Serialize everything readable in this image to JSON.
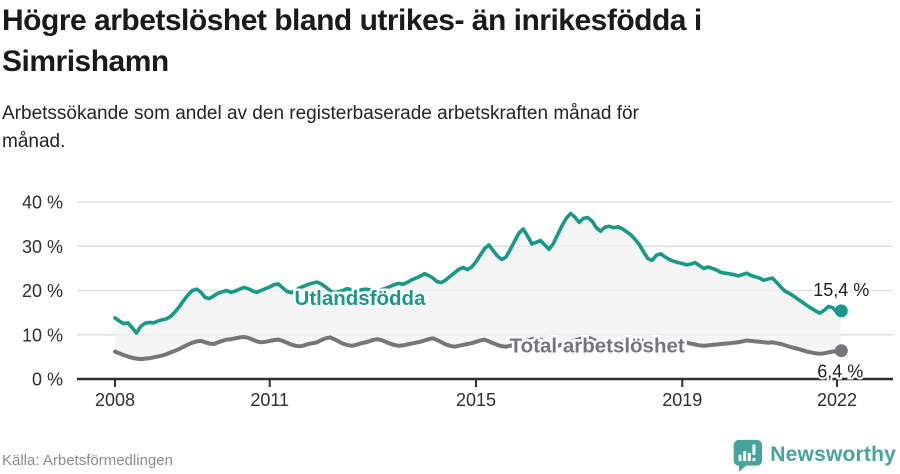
{
  "header": {
    "title": "Högre arbetslöshet bland utrikes- än inrikesfödda i Simrishamn",
    "subtitle": "Arbetssökande som andel av den registerbaserade arbetskraften månad för månad."
  },
  "footer": {
    "source": "Källa: Arbetsförmedlingen",
    "brand": "Newsworthy",
    "brand_color": "#46a49d",
    "brand_icon": "bar-chart-speech-bubble-icon"
  },
  "chart_data": {
    "type": "line",
    "frequency": "monthly",
    "x_start_year": 2008,
    "x_end": "2022-02",
    "x_ticks": [
      2008,
      2011,
      2015,
      2019,
      2022
    ],
    "x_tick_labels": [
      "2008",
      "2011",
      "2015",
      "2019",
      "2022"
    ],
    "y_ticks": [
      0,
      10,
      20,
      30,
      40
    ],
    "y_tick_labels": [
      "0 %",
      "10 %",
      "20 %",
      "30 %",
      "40 %"
    ],
    "y_unit": "%",
    "ylim": [
      0,
      43.8
    ],
    "grid": true,
    "legend": "inline-labels",
    "fill_between_color": "#f2f2f2",
    "grid_color": "#dcdcdc",
    "axis_color": "#2e2e33",
    "series": [
      {
        "name": "Utlandsfödda",
        "color": "#17998a",
        "end_label": "15,4 %",
        "last_value": 15.4,
        "label_x_year": 2012.75,
        "label_y_value": 18.3,
        "values": [
          13.8,
          13.1,
          12.5,
          12.7,
          11.6,
          10.4,
          11.9,
          12.6,
          12.8,
          12.7,
          13.1,
          13.4,
          13.6,
          14.2,
          15.2,
          16.4,
          17.8,
          19.0,
          20.0,
          20.3,
          19.6,
          18.4,
          18.2,
          18.8,
          19.4,
          19.7,
          20.0,
          19.6,
          19.9,
          20.3,
          20.7,
          20.4,
          19.9,
          19.6,
          20.0,
          20.4,
          20.8,
          21.3,
          21.5,
          20.6,
          19.8,
          19.5,
          20.0,
          20.6,
          21.0,
          21.4,
          21.7,
          21.9,
          21.5,
          20.8,
          20.0,
          19.5,
          19.7,
          20.0,
          20.4,
          20.2,
          19.9,
          20.1,
          20.3,
          20.2,
          20.0,
          19.9,
          20.2,
          20.5,
          20.9,
          21.3,
          21.6,
          21.4,
          21.8,
          22.4,
          22.8,
          23.2,
          23.8,
          23.4,
          22.8,
          22.0,
          21.8,
          22.4,
          23.2,
          24.0,
          24.8,
          25.2,
          24.7,
          25.3,
          26.5,
          28.0,
          29.5,
          30.3,
          29.0,
          27.8,
          27.0,
          27.6,
          29.3,
          31.2,
          33.0,
          33.9,
          32.3,
          30.5,
          30.9,
          31.3,
          30.3,
          29.3,
          30.6,
          32.6,
          34.6,
          36.3,
          37.4,
          36.6,
          35.4,
          36.3,
          36.5,
          35.7,
          34.2,
          33.4,
          34.3,
          34.5,
          34.2,
          34.4,
          34.0,
          33.3,
          32.6,
          31.6,
          30.4,
          28.7,
          27.2,
          26.8,
          28.0,
          28.3,
          27.6,
          27.0,
          26.6,
          26.3,
          26.1,
          25.8,
          26.0,
          26.3,
          25.6,
          25.0,
          25.3,
          25.0,
          24.6,
          24.1,
          23.9,
          23.8,
          23.6,
          23.3,
          23.6,
          23.9,
          23.4,
          23.1,
          22.8,
          22.3,
          22.6,
          22.8,
          21.8,
          20.7,
          19.8,
          19.3,
          18.7,
          18.0,
          17.3,
          16.6,
          16.0,
          15.4,
          14.9,
          15.5,
          16.4,
          16.1,
          15.1,
          15.4
        ]
      },
      {
        "name": "Total arbetslöshet",
        "color": "#76757b",
        "end_label": "6,4 %",
        "last_value": 6.4,
        "label_x_year": 2017.35,
        "label_y_value": 7.6,
        "values": [
          6.2,
          5.8,
          5.4,
          5.1,
          4.8,
          4.6,
          4.5,
          4.6,
          4.7,
          4.9,
          5.1,
          5.3,
          5.6,
          6.0,
          6.4,
          6.8,
          7.3,
          7.8,
          8.2,
          8.5,
          8.6,
          8.3,
          8.0,
          7.9,
          8.3,
          8.6,
          8.9,
          9.0,
          9.2,
          9.4,
          9.5,
          9.3,
          8.9,
          8.5,
          8.3,
          8.4,
          8.6,
          8.8,
          8.9,
          8.6,
          8.2,
          7.8,
          7.5,
          7.4,
          7.6,
          7.9,
          8.1,
          8.3,
          8.8,
          9.2,
          9.4,
          9.0,
          8.5,
          8.0,
          7.7,
          7.5,
          7.7,
          8.0,
          8.2,
          8.5,
          8.8,
          9.0,
          8.8,
          8.4,
          8.0,
          7.7,
          7.5,
          7.6,
          7.8,
          8.0,
          8.2,
          8.4,
          8.7,
          9.0,
          9.2,
          8.8,
          8.3,
          7.8,
          7.5,
          7.3,
          7.5,
          7.7,
          7.9,
          8.1,
          8.4,
          8.7,
          8.9,
          8.5,
          8.1,
          7.7,
          7.4,
          7.3,
          7.5,
          7.8,
          8.1,
          8.4,
          8.7,
          9.0,
          9.2,
          8.9,
          8.4,
          7.9,
          7.6,
          7.5,
          7.8,
          8.1,
          8.4,
          8.7,
          9.0,
          9.3,
          9.4,
          9.0,
          8.5,
          8.0,
          7.8,
          7.9,
          8.1,
          8.3,
          8.5,
          8.6,
          8.8,
          9.0,
          8.9,
          8.5,
          8.0,
          7.6,
          7.4,
          7.5,
          7.7,
          7.8,
          7.9,
          8.0,
          8.1,
          8.2,
          8.0,
          7.8,
          7.6,
          7.5,
          7.6,
          7.7,
          7.8,
          7.9,
          8.0,
          8.1,
          8.2,
          8.3,
          8.5,
          8.7,
          8.6,
          8.5,
          8.4,
          8.3,
          8.2,
          8.3,
          8.1,
          7.9,
          7.6,
          7.3,
          7.0,
          6.8,
          6.5,
          6.2,
          6.0,
          5.8,
          5.7,
          5.8,
          6.0,
          6.2,
          6.3,
          6.4
        ]
      }
    ]
  }
}
